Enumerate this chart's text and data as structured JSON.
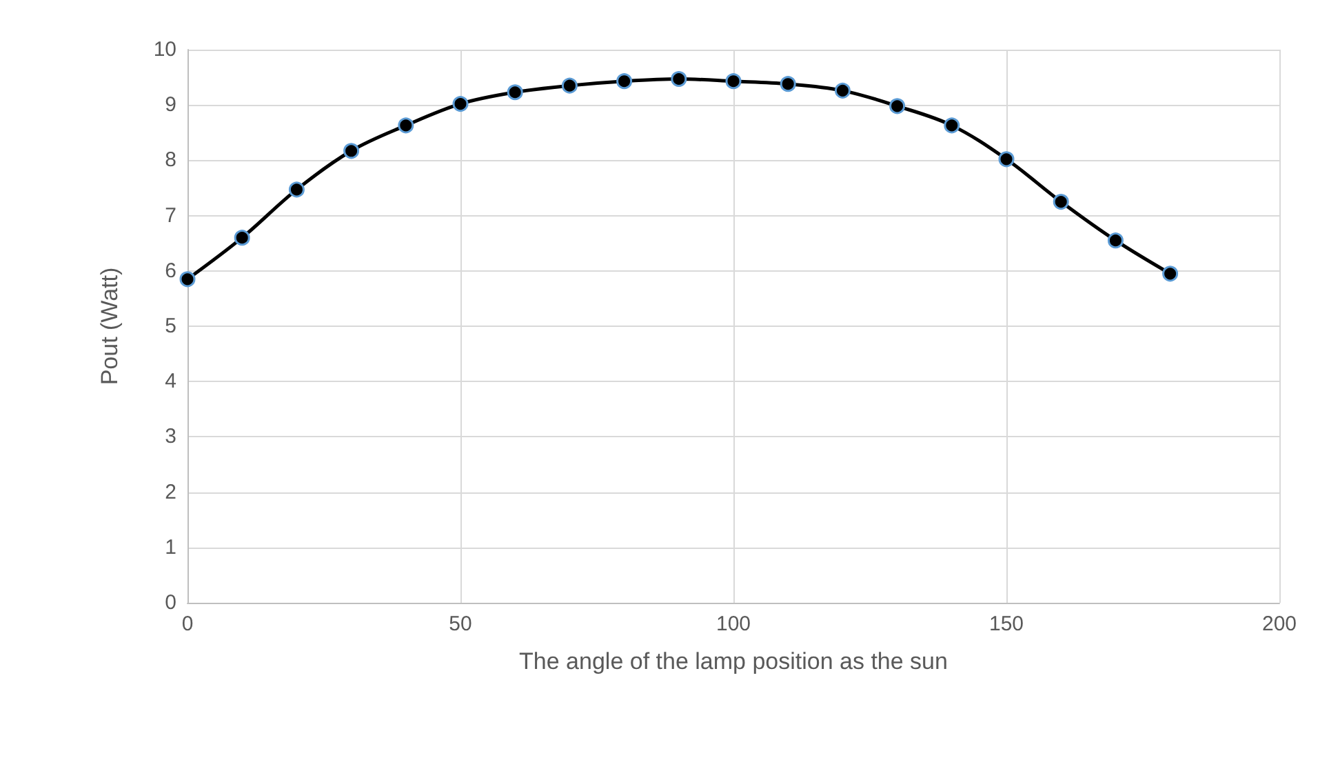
{
  "chart_data": {
    "type": "line",
    "xlabel": "The angle of the lamp position as the sun",
    "ylabel": "Pout (Watt)",
    "x": [
      0,
      10,
      20,
      30,
      40,
      50,
      60,
      70,
      80,
      90,
      100,
      110,
      120,
      130,
      140,
      150,
      160,
      170,
      180
    ],
    "series": [
      {
        "color": "#000000",
        "values": [
          5.85,
          6.6,
          7.47,
          8.17,
          8.63,
          9.02,
          9.23,
          9.35,
          9.43,
          9.47,
          9.43,
          9.38,
          9.26,
          8.98,
          8.63,
          8.02,
          7.25,
          6.55,
          5.95
        ]
      }
    ],
    "xlim": [
      0,
      200
    ],
    "xticks": [
      0,
      50,
      100,
      150,
      200
    ],
    "ylim": [
      0,
      10
    ],
    "yticks": [
      0,
      1,
      2,
      3,
      4,
      5,
      6,
      7,
      8,
      9,
      10
    ],
    "grid": true,
    "marker": "circle",
    "line_style": "solid"
  }
}
